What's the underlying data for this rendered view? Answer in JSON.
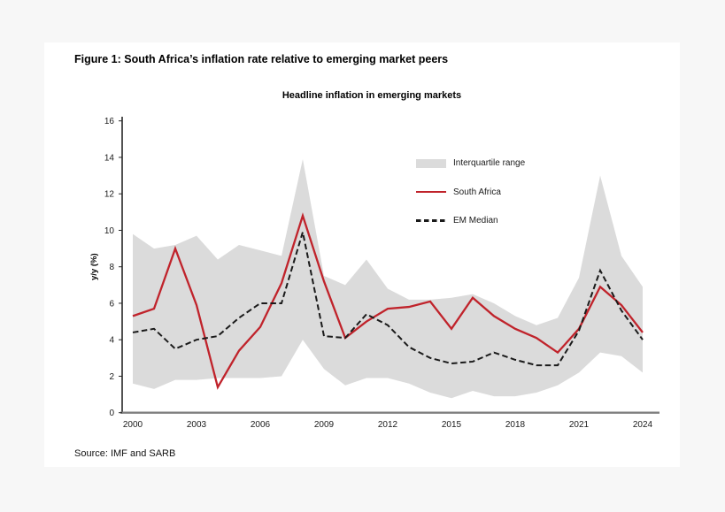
{
  "figure": {
    "title": "Figure 1: South Africa’s inflation rate relative to emerging market peers",
    "source": "Source: IMF and SARB"
  },
  "chart_data": {
    "type": "line",
    "title": "Headline inflation in emerging markets",
    "xlabel": "",
    "ylabel": "y/y (%)",
    "ylim": [
      0,
      16
    ],
    "ytick_step": 2,
    "xticks": [
      2000,
      2003,
      2006,
      2009,
      2012,
      2015,
      2018,
      2021,
      2024
    ],
    "grid": false,
    "legend_position": "upper right",
    "years": [
      2000,
      2001,
      2002,
      2003,
      2004,
      2005,
      2006,
      2007,
      2008,
      2009,
      2010,
      2011,
      2012,
      2013,
      2014,
      2015,
      2016,
      2017,
      2018,
      2019,
      2020,
      2021,
      2022,
      2023,
      2024
    ],
    "series": [
      {
        "name": "Interquartile range",
        "type": "band",
        "color": "#DBDBDB",
        "upper": [
          9.8,
          9.0,
          9.2,
          9.7,
          8.4,
          9.2,
          8.9,
          8.6,
          13.9,
          7.5,
          7.0,
          8.4,
          6.8,
          6.2,
          6.2,
          6.3,
          6.5,
          6.0,
          5.3,
          4.8,
          5.2,
          7.4,
          13.0,
          8.6,
          6.9
        ],
        "lower": [
          1.6,
          1.3,
          1.8,
          1.8,
          1.9,
          1.9,
          1.9,
          2.0,
          4.0,
          2.4,
          1.5,
          1.9,
          1.9,
          1.6,
          1.1,
          0.8,
          1.2,
          0.9,
          0.9,
          1.1,
          1.5,
          2.2,
          3.3,
          3.1,
          2.2
        ]
      },
      {
        "name": "South Africa",
        "type": "line",
        "style": "solid",
        "color": "#C0232B",
        "values": [
          5.3,
          5.7,
          9.0,
          5.9,
          1.4,
          3.4,
          4.7,
          7.1,
          10.8,
          7.2,
          4.1,
          5.0,
          5.7,
          5.8,
          6.1,
          4.6,
          6.3,
          5.3,
          4.6,
          4.1,
          3.3,
          4.6,
          6.9,
          5.9,
          4.4
        ]
      },
      {
        "name": "EM Median",
        "type": "line",
        "style": "dashed",
        "color": "#1A1A1A",
        "values": [
          4.4,
          4.6,
          3.5,
          4.0,
          4.2,
          5.2,
          6.0,
          6.0,
          9.9,
          4.2,
          4.1,
          5.4,
          4.8,
          3.6,
          3.0,
          2.7,
          2.8,
          3.3,
          2.9,
          2.6,
          2.6,
          4.5,
          7.8,
          5.6,
          4.0
        ]
      }
    ]
  }
}
